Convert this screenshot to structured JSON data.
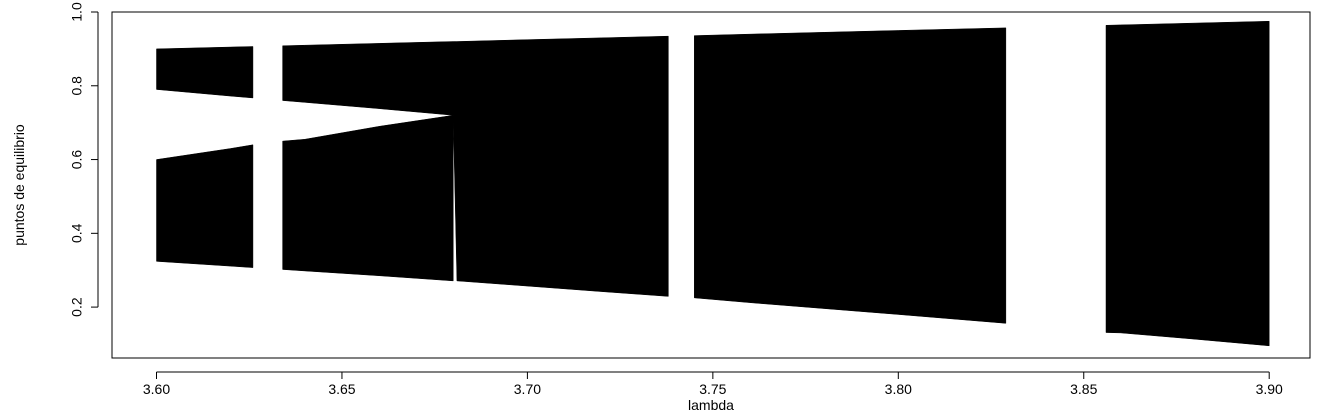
{
  "chart_data": {
    "type": "bifurcation",
    "x_label": "lambda",
    "y_label": "puntos de equilibrio",
    "x": [
      3.6,
      3.62,
      3.626,
      3.63,
      3.634,
      3.64,
      3.66,
      3.68,
      3.681,
      3.7,
      3.72,
      3.738,
      3.74,
      3.745,
      3.76,
      3.78,
      3.8,
      3.829,
      3.84,
      3.856,
      3.86,
      3.88,
      3.9
    ],
    "series": [
      {
        "color": "#000000",
        "high": [
          0.9,
          0.905,
          0.9065,
          null,
          0.9085,
          0.91,
          0.915,
          0.92,
          0.92,
          0.925,
          0.93,
          0.9345,
          null,
          0.936,
          0.94,
          0.945,
          0.95,
          0.957,
          null,
          0.964,
          0.965,
          0.97,
          0.975
        ],
        "low": [
          0.79,
          0.772,
          0.767,
          null,
          0.76,
          0.755,
          0.738,
          0.72,
          0.271,
          0.257,
          0.242,
          0.229,
          null,
          0.225,
          0.212,
          0.196,
          0.18,
          0.156,
          null,
          0.131,
          0.13,
          0.113,
          0.095
        ]
      },
      {
        "color": "#000000",
        "high": [
          0.6,
          0.63,
          0.64,
          null,
          0.65,
          0.655,
          0.69,
          0.72,
          null,
          null,
          null,
          null,
          null,
          null,
          null,
          null,
          null,
          null,
          null,
          null,
          null,
          null,
          null
        ],
        "low": [
          0.324,
          0.311,
          0.307,
          null,
          0.302,
          0.298,
          0.285,
          0.271,
          null,
          null,
          null,
          null,
          null,
          null,
          null,
          null,
          null,
          null,
          null,
          null,
          null,
          null,
          null
        ]
      }
    ],
    "xlim": [
      3.588,
      3.911
    ],
    "ylim": [
      0.062,
      1.0
    ],
    "xticks": [
      {
        "value": 3.6,
        "label": "3.60"
      },
      {
        "value": 3.65,
        "label": "3.65"
      },
      {
        "value": 3.7,
        "label": "3.70"
      },
      {
        "value": 3.75,
        "label": "3.75"
      },
      {
        "value": 3.8,
        "label": "3.80"
      },
      {
        "value": 3.85,
        "label": "3.85"
      },
      {
        "value": 3.9,
        "label": "3.90"
      }
    ],
    "yticks": [
      0.2,
      0.4,
      0.6,
      0.8,
      {
        "value": 1.0,
        "label": "1.0"
      }
    ]
  }
}
